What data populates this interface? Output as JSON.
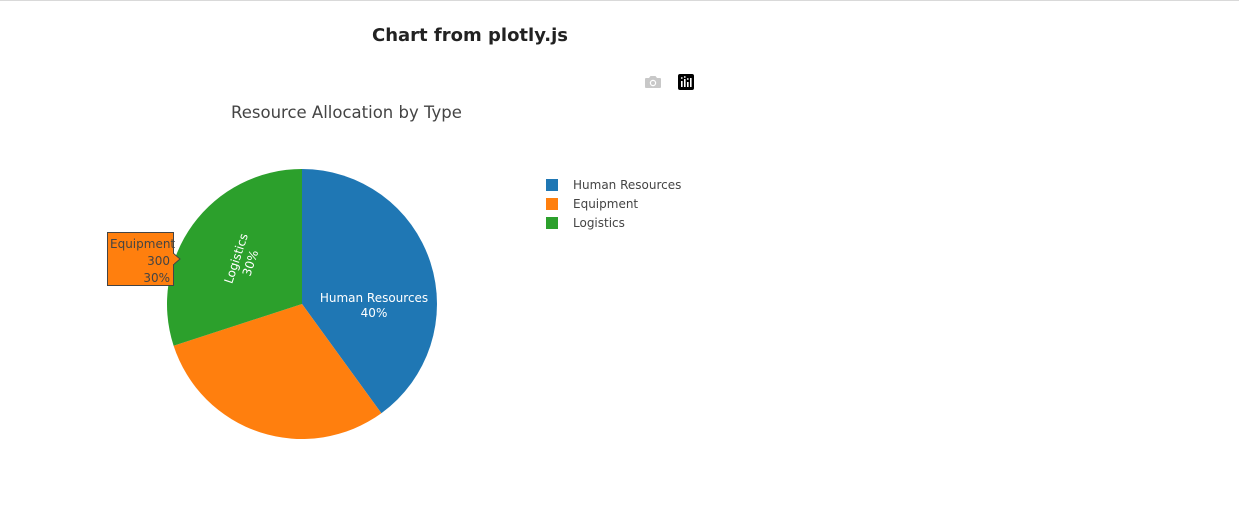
{
  "page": {
    "title": "Chart from plotly.js"
  },
  "modebar": {
    "buttons": [
      {
        "icon": "camera-icon",
        "color": "#c8c8c8"
      },
      {
        "icon": "plotly-logo-icon",
        "color": "#000000"
      }
    ]
  },
  "chart_data": {
    "type": "pie",
    "title": "Resource Allocation by Type",
    "labels": [
      "Human Resources",
      "Equipment",
      "Logistics"
    ],
    "values": [
      400,
      300,
      300
    ],
    "percent_labels": [
      "40%",
      "30%",
      "30%"
    ],
    "colors": [
      "#1f77b4",
      "#ff7f0e",
      "#2ca02c"
    ],
    "direction": "clockwise",
    "legend_placement": "right",
    "hover": {
      "label": "Equipment",
      "value": "300",
      "percent": "30%"
    }
  }
}
